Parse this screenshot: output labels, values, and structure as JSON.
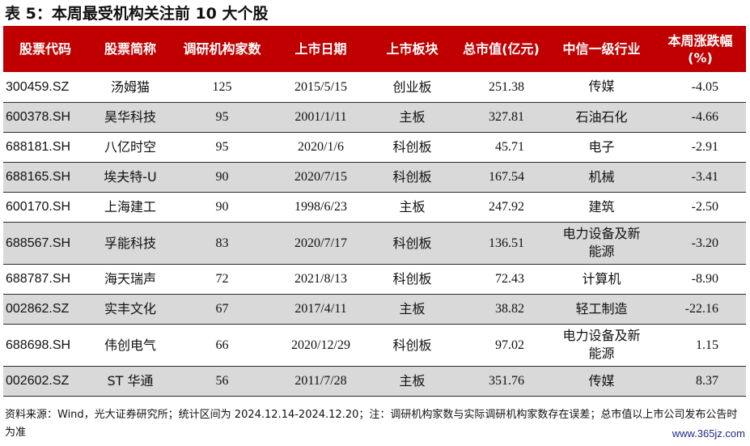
{
  "title": "表 5：本周最受机构关注前 10 大个股",
  "headers": [
    "股票代码",
    "股票简称",
    "调研机构家数",
    "上市日期",
    "上市板块",
    "总市值(亿元)",
    "中信一级行业",
    "本周涨跌幅\n(%)"
  ],
  "rows": [
    {
      "code": "300459.SZ",
      "name": "汤姆猫",
      "institutions": "125",
      "listing_date": "2015/5/15",
      "board": "创业板",
      "market_cap": "251.38",
      "industry": "传媒",
      "change": "-4.05"
    },
    {
      "code": "600378.SH",
      "name": "昊华科技",
      "institutions": "95",
      "listing_date": "2001/1/11",
      "board": "主板",
      "market_cap": "327.81",
      "industry": "石油石化",
      "change": "-4.66"
    },
    {
      "code": "688181.SH",
      "name": "八亿时空",
      "institutions": "95",
      "listing_date": "2020/1/6",
      "board": "科创板",
      "market_cap": "45.71",
      "industry": "电子",
      "change": "-2.91"
    },
    {
      "code": "688165.SH",
      "name": "埃夫特-U",
      "institutions": "90",
      "listing_date": "2020/7/15",
      "board": "科创板",
      "market_cap": "167.54",
      "industry": "机械",
      "change": "-3.41"
    },
    {
      "code": "600170.SH",
      "name": "上海建工",
      "institutions": "90",
      "listing_date": "1998/6/23",
      "board": "主板",
      "market_cap": "247.92",
      "industry": "建筑",
      "change": "-2.50"
    },
    {
      "code": "688567.SH",
      "name": "孚能科技",
      "institutions": "83",
      "listing_date": "2020/7/17",
      "board": "科创板",
      "market_cap": "136.51",
      "industry": "电力设备及新\n能源",
      "change": "-3.20"
    },
    {
      "code": "688787.SH",
      "name": "海天瑞声",
      "institutions": "72",
      "listing_date": "2021/8/13",
      "board": "科创板",
      "market_cap": "72.43",
      "industry": "计算机",
      "change": "-8.90"
    },
    {
      "code": "002862.SZ",
      "name": "实丰文化",
      "institutions": "67",
      "listing_date": "2017/4/11",
      "board": "主板",
      "market_cap": "38.82",
      "industry": "轻工制造",
      "change": "-22.16"
    },
    {
      "code": "688698.SH",
      "name": "伟创电气",
      "institutions": "66",
      "listing_date": "2020/12/29",
      "board": "科创板",
      "market_cap": "97.02",
      "industry": "电力设备及新\n能源",
      "change": "1.15"
    },
    {
      "code": "002602.SZ",
      "name": "ST 华通",
      "institutions": "56",
      "listing_date": "2011/7/28",
      "board": "主板",
      "market_cap": "351.76",
      "industry": "传媒",
      "change": "8.37"
    }
  ],
  "note": "资料来源：Wind，光大证券研究所；统计区间为 2024.12.14-2024.12.20；注：调研机构家数与实际调研机构家数存在误差；总市值以上市公司发布公告时为准",
  "watermark": "www.365jz.com",
  "colors": {
    "header_bg": "#c00000",
    "alt_row_bg": "#d9d9d9"
  }
}
